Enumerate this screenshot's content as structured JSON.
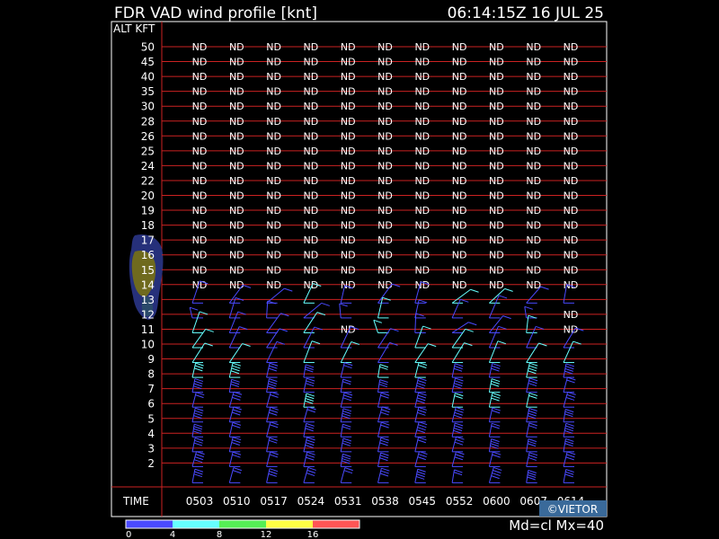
{
  "header": {
    "title": "FDR VAD wind profile [knt]",
    "timestamp": "06:14:15Z 16 JUL 25"
  },
  "axis": {
    "alt_label": "ALT KFT",
    "time_label": "TIME"
  },
  "footer": {
    "mode": "Md=cl Mx=40",
    "credit": "©VIETOR",
    "legend_ticks": [
      "0",
      "4",
      "8",
      "12",
      "16"
    ],
    "legend_colors": [
      "#4a4aff",
      "#66ffff",
      "#55ee55",
      "#ffff44",
      "#ff5555"
    ]
  },
  "chart_data": {
    "type": "table",
    "title": "FDR VAD wind profile [knt]",
    "xlabel": "TIME",
    "ylabel": "ALT KFT",
    "times": [
      "0503",
      "0510",
      "0517",
      "0524",
      "0531",
      "0538",
      "0545",
      "0552",
      "0600",
      "0607",
      "0614"
    ],
    "altitudes": [
      "50",
      "45",
      "40",
      "35",
      "30",
      "28",
      "26",
      "25",
      "24",
      "22",
      "20",
      "19",
      "18",
      "17",
      "16",
      "15",
      "14",
      "13",
      "12",
      "11",
      "10",
      "9",
      "8",
      "7",
      "6",
      "5",
      "4",
      "3",
      "2"
    ],
    "no_data_label": "ND",
    "no_data_cells": [
      {
        "alt": "11",
        "time": "0531"
      },
      {
        "alt": "12",
        "time": "0614"
      },
      {
        "alt": "11",
        "time": "0614"
      }
    ],
    "no_data_above": "14",
    "wind_rows": [
      "13",
      "12",
      "11",
      "10",
      "9",
      "8",
      "7",
      "6",
      "5",
      "4",
      "3",
      "2"
    ],
    "speed_color_breaks": [
      0,
      4,
      8,
      12,
      16
    ]
  }
}
